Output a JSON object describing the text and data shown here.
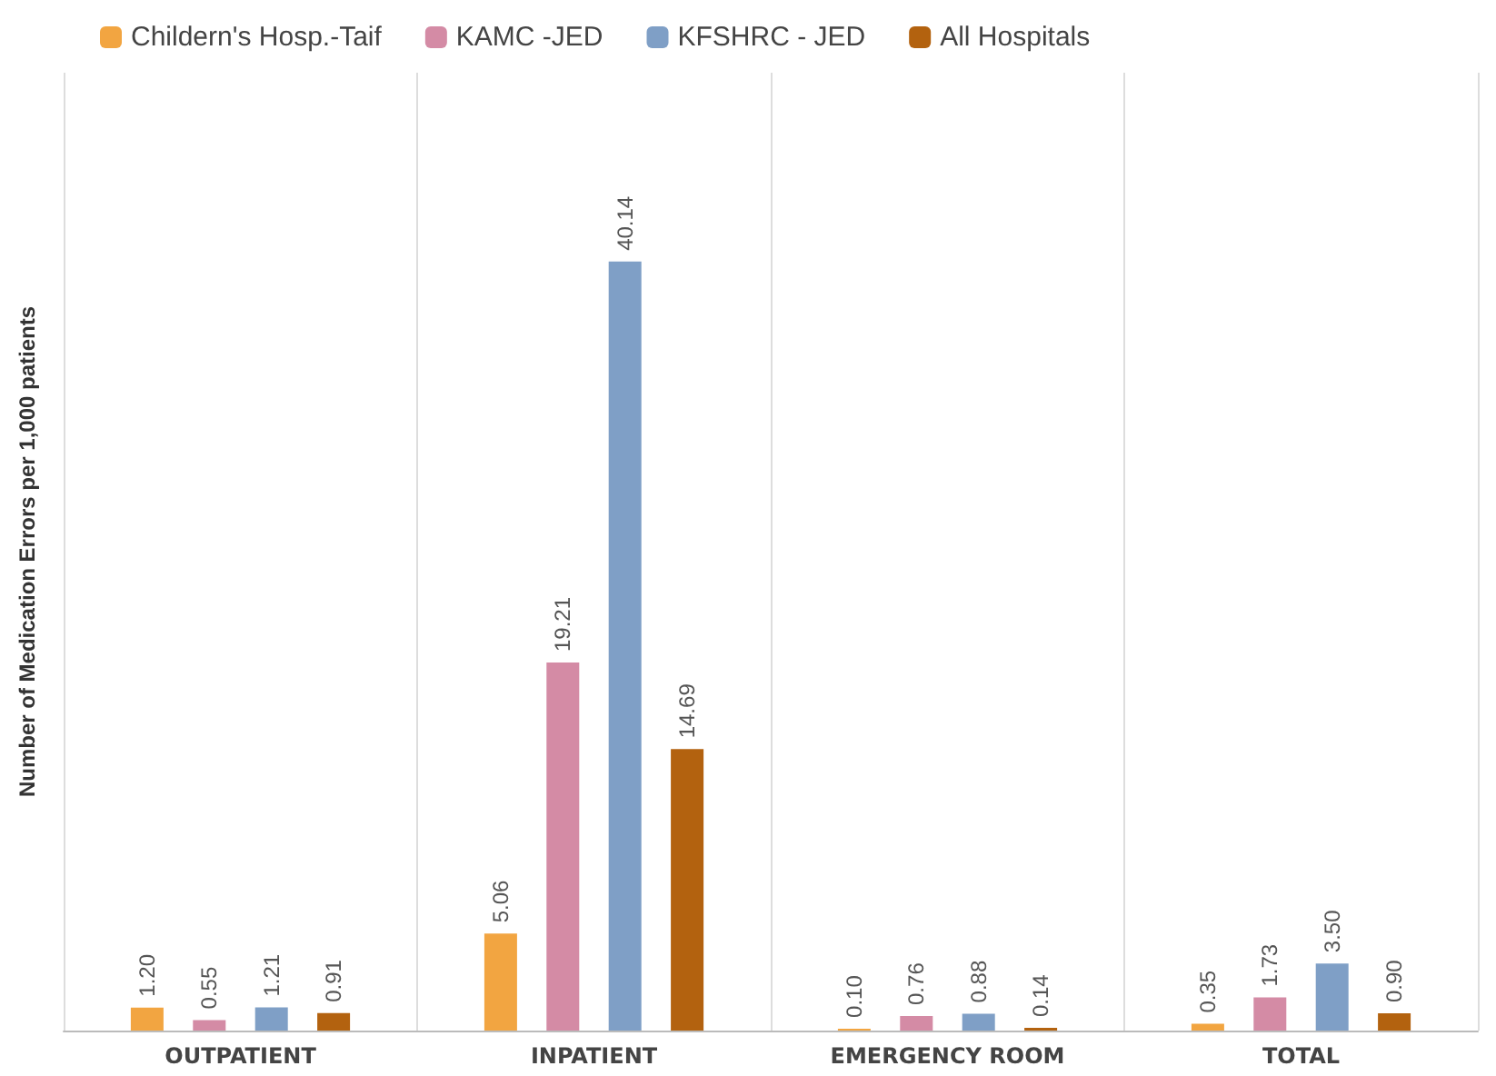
{
  "chart_data": {
    "type": "bar",
    "ylabel": "Number of Medication Errors per 1,000 patients",
    "categories": [
      "OUTPATIENT",
      "INPATIENT",
      "EMERGENCY ROOM",
      "TOTAL"
    ],
    "series": [
      {
        "name": "Childern's Hosp.-Taif",
        "color": "#f2a541",
        "values": [
          1.2,
          5.06,
          0.1,
          0.35
        ],
        "value_labels": [
          "1.20",
          "5.06",
          "0.10",
          "0.35"
        ]
      },
      {
        "name": "KAMC -JED",
        "color": "#d48ba5",
        "values": [
          0.55,
          19.21,
          0.76,
          1.73
        ],
        "value_labels": [
          "0.55",
          "19.21",
          "0.76",
          "1.73"
        ]
      },
      {
        "name": "KFSHRC - JED",
        "color": "#7f9fc6",
        "values": [
          1.21,
          40.14,
          0.88,
          3.5
        ],
        "value_labels": [
          "1.21",
          "40.14",
          "0.88",
          "3.50"
        ]
      },
      {
        "name": "All Hospitals",
        "color": "#b3620f",
        "values": [
          0.91,
          14.69,
          0.14,
          0.9
        ],
        "value_labels": [
          "0.91",
          "14.69",
          "0.14",
          "0.90"
        ]
      }
    ],
    "grid": "x",
    "legend": "top left",
    "tick_labels": "x"
  }
}
